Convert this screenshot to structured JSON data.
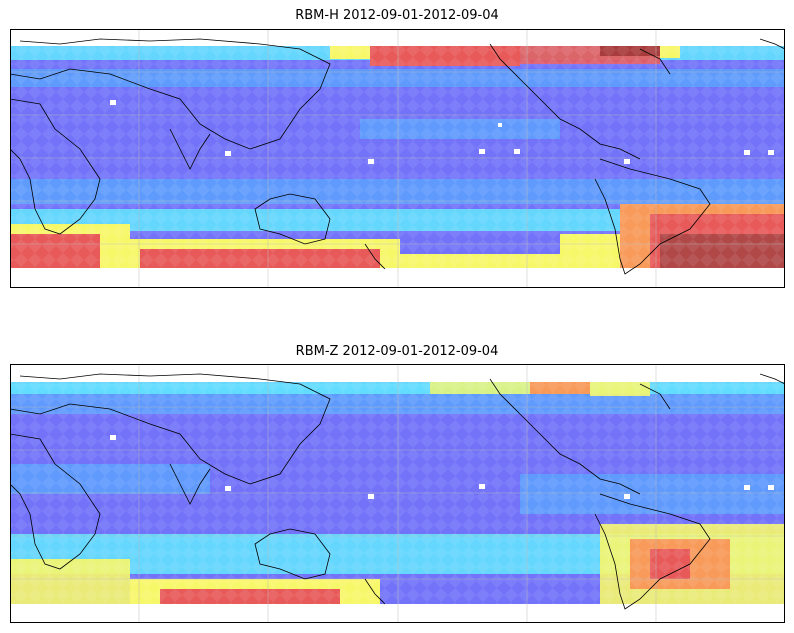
{
  "panels": [
    {
      "title": "RBM-H 2012-09-01-2012-09-04",
      "variable": "RBM-H"
    },
    {
      "title": "RBM-Z 2012-09-01-2012-09-04",
      "variable": "RBM-Z"
    }
  ],
  "colormap": "jet",
  "gridlines": true,
  "projection": "PlateCarree",
  "colors": {
    "low": "#6b6bff",
    "mid": "#5fe8ff",
    "high": "#f7f76a",
    "peak": "#e85a5a",
    "gridline": "#bdbdbd",
    "coastline": "#000000"
  }
}
